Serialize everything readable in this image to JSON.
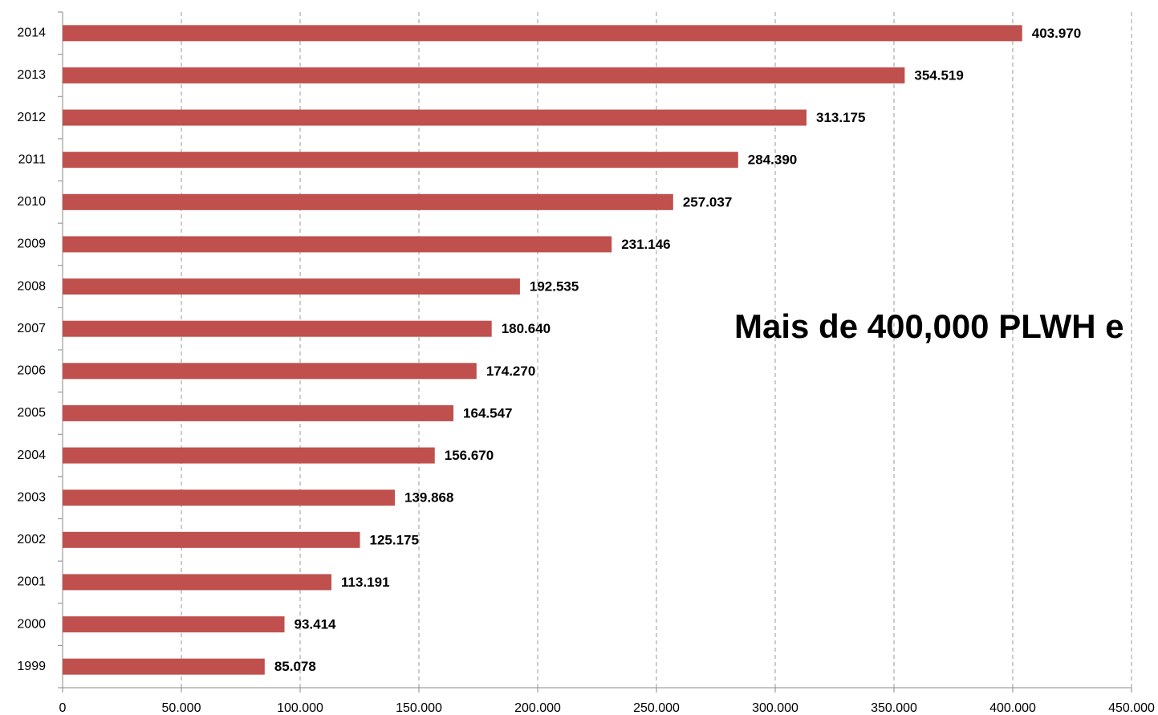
{
  "chart_data": {
    "type": "barh",
    "annotation": "Mais de 400,000 PLWH e",
    "categories": [
      "2014",
      "2013",
      "2012",
      "2011",
      "2010",
      "2009",
      "2008",
      "2007",
      "2006",
      "2005",
      "2004",
      "2003",
      "2002",
      "2001",
      "2000",
      "1999"
    ],
    "values": [
      403970,
      354519,
      313175,
      284390,
      257037,
      231146,
      192535,
      180640,
      174270,
      164547,
      156670,
      139868,
      125175,
      113191,
      93414,
      85078
    ],
    "value_labels": [
      "403.970",
      "354.519",
      "313.175",
      "284.390",
      "257.037",
      "231.146",
      "192.535",
      "180.640",
      "174.270",
      "164.547",
      "156.670",
      "139.868",
      "125.175",
      "113.191",
      "93.414",
      "85.078"
    ],
    "color": "#c0504d",
    "xlim": [
      0,
      450000
    ],
    "xticks": [
      0,
      {
        "value": 50000,
        "label": "50.000"
      },
      {
        "value": 100000,
        "label": "100.000"
      },
      {
        "value": 150000,
        "label": "150.000"
      },
      {
        "value": 200000,
        "label": "200.000"
      },
      {
        "value": 250000,
        "label": "250.000"
      },
      {
        "value": 300000,
        "label": "300.000"
      },
      {
        "value": 350000,
        "label": "350.000"
      },
      {
        "value": 400000,
        "label": "400.000"
      },
      {
        "value": 450000,
        "label": "450.000"
      }
    ],
    "grid": true
  }
}
